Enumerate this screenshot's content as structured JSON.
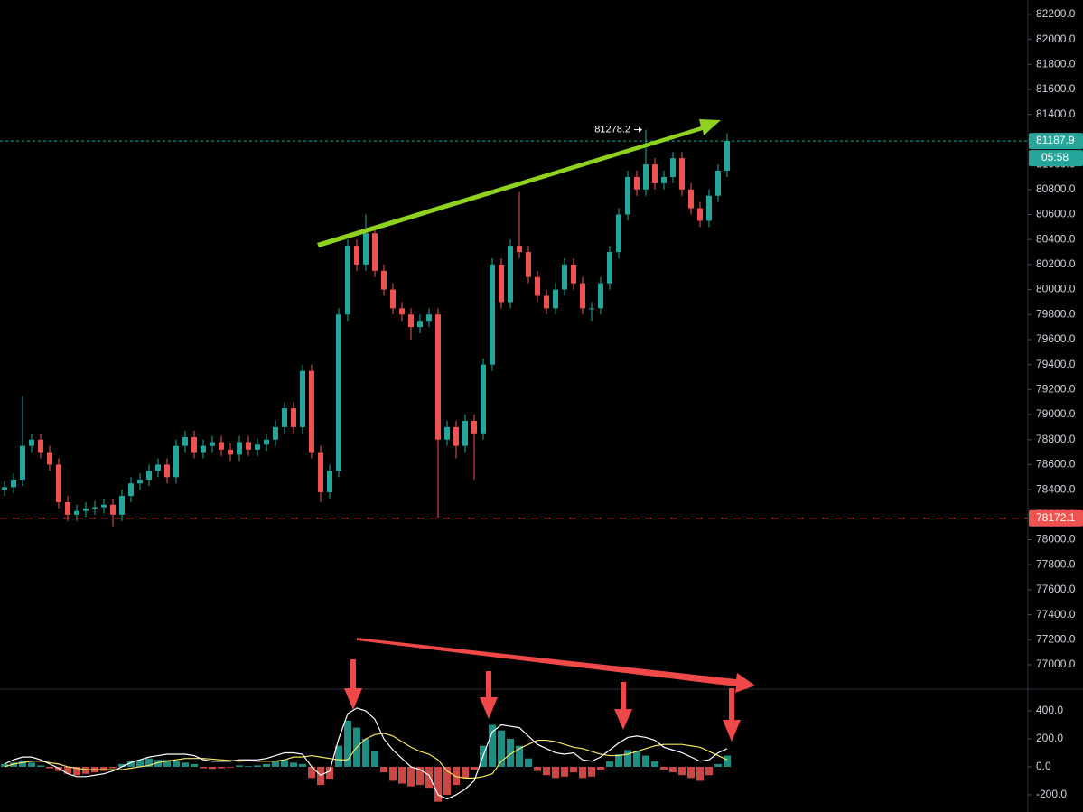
{
  "chart_data": [
    {
      "type": "candlestick",
      "up_color": "#26a69a",
      "down_color": "#ef5350",
      "open": [
        78400,
        78420,
        78480,
        78750,
        78800,
        78700,
        78600,
        78300,
        78200,
        78230,
        78250,
        78260,
        78280,
        78200,
        78350,
        78450,
        78480,
        78550,
        78600,
        78500,
        78750,
        78820,
        78700,
        78750,
        78780,
        78720,
        78680,
        78780,
        78720,
        78760,
        78800,
        78900,
        79050,
        78900,
        79350,
        78700,
        78380,
        78550,
        79800,
        80350,
        80200,
        80450,
        80150,
        80000,
        79850,
        79800,
        79700,
        79750,
        79800,
        78800,
        78900,
        78750,
        78950,
        78850,
        79400,
        80200,
        79900,
        80350,
        80300,
        80100,
        79950,
        79850,
        80000,
        80200,
        80050,
        79850,
        79850,
        80050,
        80300,
        80600,
        80900,
        80800,
        81000,
        80850,
        80900,
        81050,
        80800,
        80650,
        80550,
        80750,
        80950
      ],
      "high": [
        78470,
        78530,
        79150,
        78850,
        78850,
        78750,
        78650,
        78350,
        78280,
        78300,
        78310,
        78330,
        78330,
        78400,
        78500,
        78530,
        78600,
        78650,
        78650,
        78800,
        78870,
        78870,
        78800,
        78830,
        78830,
        78770,
        78830,
        78830,
        78810,
        78850,
        78950,
        79100,
        79100,
        79400,
        79400,
        78750,
        78600,
        79850,
        80400,
        80400,
        80600,
        80500,
        80200,
        80050,
        79900,
        79850,
        79800,
        79850,
        79850,
        78950,
        78950,
        79000,
        79000,
        79450,
        80250,
        80250,
        80400,
        80780,
        80350,
        80150,
        80000,
        80050,
        80250,
        80250,
        80100,
        79900,
        80100,
        80350,
        80650,
        80950,
        80950,
        81278.2,
        81050,
        80950,
        81100,
        81100,
        80850,
        80700,
        80800,
        81000,
        81250
      ],
      "low": [
        78350,
        78370,
        78430,
        78700,
        78650,
        78550,
        78250,
        78150,
        78150,
        78180,
        78200,
        78210,
        78100,
        78150,
        78300,
        78400,
        78430,
        78500,
        78450,
        78450,
        78700,
        78650,
        78650,
        78700,
        78670,
        78630,
        78630,
        78670,
        78670,
        78710,
        78750,
        78850,
        78850,
        78850,
        78650,
        78300,
        78330,
        78500,
        79750,
        80150,
        80150,
        80100,
        79950,
        79800,
        79750,
        79600,
        79650,
        79700,
        78172.1,
        78750,
        78650,
        78700,
        78480,
        78800,
        79350,
        79850,
        79850,
        80250,
        80050,
        79900,
        79800,
        79800,
        79950,
        80000,
        79800,
        79750,
        79800,
        80000,
        80250,
        80550,
        80750,
        80750,
        80800,
        80800,
        80850,
        80750,
        80600,
        80500,
        80500,
        80700,
        80900
      ],
      "close": [
        78420,
        78480,
        78750,
        78800,
        78700,
        78600,
        78300,
        78200,
        78230,
        78250,
        78260,
        78280,
        78200,
        78350,
        78450,
        78480,
        78550,
        78600,
        78500,
        78750,
        78820,
        78700,
        78750,
        78780,
        78720,
        78680,
        78780,
        78720,
        78760,
        78800,
        78900,
        79050,
        78900,
        79350,
        78700,
        78380,
        78550,
        79800,
        80350,
        80200,
        80450,
        80150,
        80000,
        79850,
        79800,
        79700,
        79750,
        79800,
        78800,
        78900,
        78750,
        78950,
        78850,
        79400,
        80200,
        79900,
        80350,
        80300,
        80100,
        79950,
        79850,
        80000,
        80200,
        80050,
        79850,
        79850,
        80050,
        80300,
        80600,
        80900,
        80800,
        81000,
        80850,
        80900,
        81050,
        80800,
        80650,
        80550,
        80750,
        80950,
        81187.9
      ],
      "ylim": [
        76805,
        82315
      ],
      "yticks": [
        {
          "value": 77000,
          "label": "77000.0"
        },
        {
          "value": 77200,
          "label": "77200.0"
        },
        {
          "value": 77400,
          "label": "77400.0"
        },
        {
          "value": 77600,
          "label": "77600.0"
        },
        {
          "value": 77800,
          "label": "77800.0"
        },
        {
          "value": 78000,
          "label": "78000.0"
        },
        {
          "value": 78200,
          "label": "78200.0"
        },
        {
          "value": 78400,
          "label": "78400.0"
        },
        {
          "value": 78600,
          "label": "78600.0"
        },
        {
          "value": 78800,
          "label": "78800.0"
        },
        {
          "value": 79000,
          "label": "79000.0"
        },
        {
          "value": 79200,
          "label": "79200.0"
        },
        {
          "value": 79400,
          "label": "79400.0"
        },
        {
          "value": 79600,
          "label": "79600.0"
        },
        {
          "value": 79800,
          "label": "79800.0"
        },
        {
          "value": 80000,
          "label": "80000.0"
        },
        {
          "value": 80200,
          "label": "80200.0"
        },
        {
          "value": 80400,
          "label": "80400.0"
        },
        {
          "value": 80600,
          "label": "80600.0"
        },
        {
          "value": 80800,
          "label": "80800.0"
        },
        {
          "value": 81000,
          "label": "81000.0"
        },
        {
          "value": 81200,
          "label": "81200.0"
        },
        {
          "value": 81400,
          "label": "81400.0"
        },
        {
          "value": 81600,
          "label": "81600.0"
        },
        {
          "value": 81800,
          "label": "81800.0"
        },
        {
          "value": 82000,
          "label": "82000.0"
        },
        {
          "value": 82200,
          "label": "82200.0"
        }
      ],
      "price_lines": [
        {
          "value": 81187.9,
          "color": "#26a69a"
        },
        {
          "value": 78172.1,
          "color": "#ef5350"
        }
      ],
      "countdown": "05:58",
      "high_marker": 81278.2
    },
    {
      "type": "macd",
      "up_color": "#26a69a",
      "down_color": "#ef5350",
      "histogram": [
        20,
        30,
        40,
        30,
        10,
        -10,
        -30,
        -50,
        -60,
        -50,
        -40,
        -30,
        -10,
        20,
        40,
        50,
        60,
        50,
        50,
        40,
        30,
        20,
        -10,
        -15,
        -10,
        -5,
        10,
        5,
        10,
        20,
        40,
        50,
        30,
        20,
        -80,
        -130,
        -90,
        150,
        330,
        280,
        200,
        110,
        -40,
        -100,
        -120,
        -140,
        -130,
        -150,
        -250,
        -200,
        -130,
        -80,
        -20,
        150,
        300,
        260,
        200,
        150,
        60,
        -30,
        -60,
        -80,
        -70,
        -40,
        -80,
        -70,
        -20,
        40,
        90,
        120,
        110,
        80,
        40,
        -20,
        -40,
        -60,
        -80,
        -100,
        -60,
        20,
        80
      ],
      "macd_line": [
        20,
        50,
        70,
        70,
        50,
        20,
        -10,
        -50,
        -70,
        -70,
        -60,
        -50,
        -30,
        0,
        30,
        50,
        70,
        80,
        90,
        90,
        90,
        80,
        50,
        40,
        40,
        40,
        50,
        50,
        50,
        60,
        80,
        100,
        100,
        90,
        0,
        -60,
        -30,
        200,
        380,
        420,
        400,
        340,
        200,
        120,
        60,
        0,
        -20,
        -60,
        -200,
        -230,
        -200,
        -160,
        -100,
        80,
        250,
        300,
        290,
        280,
        220,
        160,
        130,
        100,
        90,
        100,
        50,
        40,
        70,
        120,
        170,
        210,
        220,
        210,
        190,
        140,
        120,
        100,
        70,
        40,
        50,
        100,
        130
      ],
      "signal_line": [
        0,
        20,
        30,
        40,
        40,
        30,
        20,
        0,
        -10,
        -20,
        -20,
        -20,
        -20,
        -20,
        -10,
        0,
        10,
        30,
        40,
        50,
        60,
        60,
        60,
        55,
        50,
        45,
        40,
        45,
        40,
        40,
        40,
        50,
        70,
        70,
        80,
        70,
        60,
        50,
        50,
        140,
        200,
        230,
        240,
        220,
        180,
        140,
        110,
        90,
        50,
        -30,
        -70,
        -80,
        -80,
        -70,
        -50,
        40,
        90,
        130,
        160,
        190,
        190,
        180,
        160,
        140,
        130,
        110,
        90,
        80,
        80,
        90,
        110,
        130,
        150,
        160,
        160,
        160,
        150,
        140,
        110,
        80,
        50
      ],
      "macd_color": "#ffffff",
      "signal_color": "#f5e663",
      "ylim": [
        -323,
        555
      ],
      "yticks": [
        {
          "value": 400,
          "label": "400.0"
        },
        {
          "value": 200,
          "label": "200.0"
        },
        {
          "value": 0,
          "label": "0.0"
        },
        {
          "value": -200,
          "label": "-200.0"
        }
      ]
    }
  ]
}
